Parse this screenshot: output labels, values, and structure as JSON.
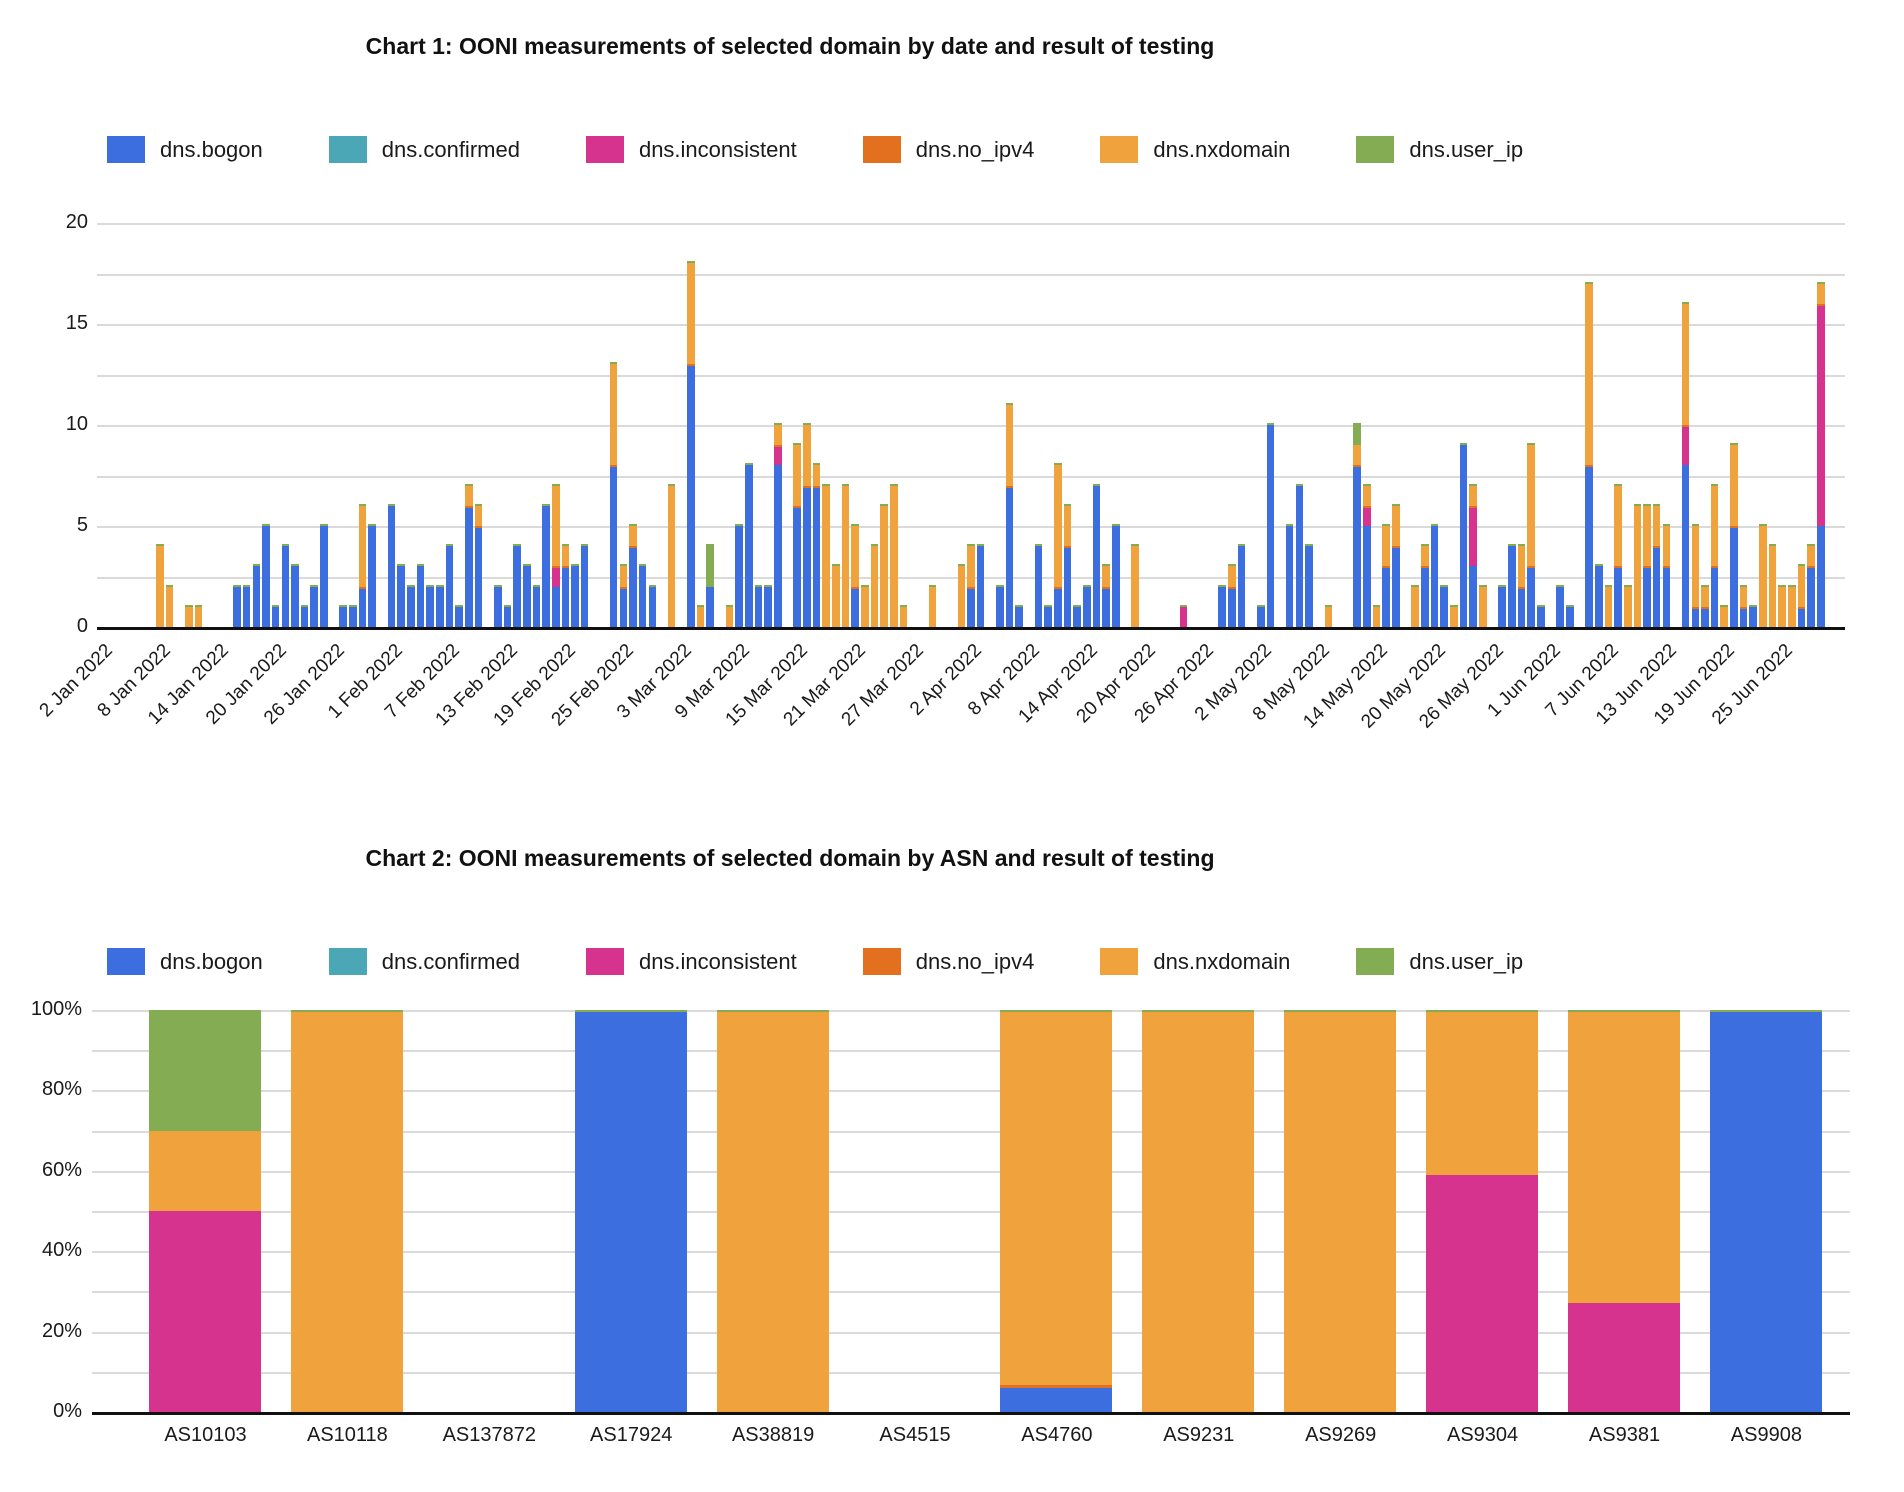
{
  "series": [
    {
      "key": "b",
      "label": "dns.bogon",
      "color": "#3C6EE0"
    },
    {
      "key": "c",
      "label": "dns.confirmed",
      "color": "#4BA6B5"
    },
    {
      "key": "i",
      "label": "dns.inconsistent",
      "color": "#D5338E"
    },
    {
      "key": "nv",
      "label": "dns.no_ipv4",
      "color": "#E2701F"
    },
    {
      "key": "nx",
      "label": "dns.nxdomain",
      "color": "#F0A33C"
    },
    {
      "key": "u",
      "label": "dns.user_ip",
      "color": "#84AD53"
    }
  ],
  "chart_data": [
    {
      "type": "bar",
      "stacked": true,
      "title": "Chart 1: OONI measurements of selected domain by date and result of testing",
      "ylabel": "",
      "xlabel": "",
      "ylim": [
        0,
        20
      ],
      "y_major_ticks": [
        0,
        5,
        10,
        15,
        20
      ],
      "y_minor_step": 2.5,
      "n_day_slots": 181,
      "x_ticks": [
        {
          "d": 0,
          "label": "2 Jan 2022"
        },
        {
          "d": 6,
          "label": "8 Jan 2022"
        },
        {
          "d": 12,
          "label": "14 Jan 2022"
        },
        {
          "d": 18,
          "label": "20 Jan 2022"
        },
        {
          "d": 24,
          "label": "26 Jan 2022"
        },
        {
          "d": 30,
          "label": "1 Feb 2022"
        },
        {
          "d": 36,
          "label": "7 Feb 2022"
        },
        {
          "d": 42,
          "label": "13 Feb 2022"
        },
        {
          "d": 48,
          "label": "19 Feb 2022"
        },
        {
          "d": 54,
          "label": "25 Feb 2022"
        },
        {
          "d": 60,
          "label": "3 Mar 2022"
        },
        {
          "d": 66,
          "label": "9 Mar 2022"
        },
        {
          "d": 72,
          "label": "15 Mar 2022"
        },
        {
          "d": 78,
          "label": "21 Mar 2022"
        },
        {
          "d": 84,
          "label": "27 Mar 2022"
        },
        {
          "d": 90,
          "label": "2 Apr 2022"
        },
        {
          "d": 96,
          "label": "8 Apr 2022"
        },
        {
          "d": 102,
          "label": "14 Apr 2022"
        },
        {
          "d": 108,
          "label": "20 Apr 2022"
        },
        {
          "d": 114,
          "label": "26 Apr 2022"
        },
        {
          "d": 120,
          "label": "2 May 2022"
        },
        {
          "d": 126,
          "label": "8 May 2022"
        },
        {
          "d": 132,
          "label": "14 May 2022"
        },
        {
          "d": 138,
          "label": "20 May 2022"
        },
        {
          "d": 144,
          "label": "26 May 2022"
        },
        {
          "d": 150,
          "label": "1 Jun 2022"
        },
        {
          "d": 156,
          "label": "7 Jun 2022"
        },
        {
          "d": 162,
          "label": "13 Jun 2022"
        },
        {
          "d": 168,
          "label": "19 Jun 2022"
        },
        {
          "d": 174,
          "label": "25 Jun 2022"
        }
      ],
      "bars": [
        {
          "d": 6,
          "date": "8 Jan 2022",
          "nx": 4
        },
        {
          "d": 7,
          "date": "9 Jan 2022",
          "nx": 2
        },
        {
          "d": 9,
          "date": "11 Jan 2022",
          "nx": 1
        },
        {
          "d": 10,
          "date": "12 Jan 2022",
          "nx": 1
        },
        {
          "d": 14,
          "date": "16 Jan 2022",
          "b": 2
        },
        {
          "d": 15,
          "date": "17 Jan 2022",
          "b": 2
        },
        {
          "d": 16,
          "date": "18 Jan 2022",
          "b": 3
        },
        {
          "d": 17,
          "date": "19 Jan 2022",
          "b": 5
        },
        {
          "d": 18,
          "date": "20 Jan 2022",
          "b": 1
        },
        {
          "d": 19,
          "date": "21 Jan 2022",
          "b": 4
        },
        {
          "d": 20,
          "date": "22 Jan 2022",
          "b": 3
        },
        {
          "d": 21,
          "date": "23 Jan 2022",
          "b": 1
        },
        {
          "d": 22,
          "date": "24 Jan 2022",
          "b": 2
        },
        {
          "d": 23,
          "date": "25 Jan 2022",
          "b": 5
        },
        {
          "d": 25,
          "date": "27 Jan 2022",
          "b": 1
        },
        {
          "d": 26,
          "date": "28 Jan 2022",
          "b": 1
        },
        {
          "d": 27,
          "date": "29 Jan 2022",
          "b": 2,
          "nx": 4
        },
        {
          "d": 28,
          "date": "30 Jan 2022",
          "b": 5
        },
        {
          "d": 30,
          "date": "1 Feb 2022",
          "b": 6
        },
        {
          "d": 31,
          "date": "2 Feb 2022",
          "b": 3
        },
        {
          "d": 32,
          "date": "3 Feb 2022",
          "b": 2
        },
        {
          "d": 33,
          "date": "4 Feb 2022",
          "b": 3
        },
        {
          "d": 34,
          "date": "5 Feb 2022",
          "b": 2
        },
        {
          "d": 35,
          "date": "6 Feb 2022",
          "b": 2
        },
        {
          "d": 36,
          "date": "7 Feb 2022",
          "b": 4
        },
        {
          "d": 37,
          "date": "8 Feb 2022",
          "b": 1
        },
        {
          "d": 38,
          "date": "9 Feb 2022",
          "b": 6,
          "nx": 1
        },
        {
          "d": 39,
          "date": "10 Feb 2022",
          "b": 5,
          "nx": 1
        },
        {
          "d": 41,
          "date": "12 Feb 2022",
          "b": 2
        },
        {
          "d": 42,
          "date": "13 Feb 2022",
          "b": 1
        },
        {
          "d": 43,
          "date": "14 Feb 2022",
          "b": 4
        },
        {
          "d": 44,
          "date": "15 Feb 2022",
          "b": 3
        },
        {
          "d": 45,
          "date": "16 Feb 2022",
          "b": 2
        },
        {
          "d": 46,
          "date": "17 Feb 2022",
          "b": 6
        },
        {
          "d": 47,
          "date": "18 Feb 2022",
          "b": 2,
          "i": 1,
          "nx": 4
        },
        {
          "d": 48,
          "date": "19 Feb 2022",
          "b": 3,
          "nx": 1
        },
        {
          "d": 49,
          "date": "20 Feb 2022",
          "b": 3
        },
        {
          "d": 50,
          "date": "21 Feb 2022",
          "b": 4
        },
        {
          "d": 53,
          "date": "24 Feb 2022",
          "b": 8,
          "nx": 5
        },
        {
          "d": 54,
          "date": "25 Feb 2022",
          "b": 2,
          "nx": 1
        },
        {
          "d": 55,
          "date": "26 Feb 2022",
          "b": 4,
          "nx": 1
        },
        {
          "d": 56,
          "date": "27 Feb 2022",
          "b": 3
        },
        {
          "d": 57,
          "date": "28 Feb 2022",
          "b": 2
        },
        {
          "d": 59,
          "date": "2 Mar 2022",
          "nx": 7
        },
        {
          "d": 61,
          "date": "4 Mar 2022",
          "b": 13,
          "nx": 5
        },
        {
          "d": 62,
          "date": "5 Mar 2022",
          "nx": 1
        },
        {
          "d": 63,
          "date": "6 Mar 2022",
          "b": 2,
          "u": 2
        },
        {
          "d": 65,
          "date": "8 Mar 2022",
          "nx": 1
        },
        {
          "d": 66,
          "date": "9 Mar 2022",
          "b": 5
        },
        {
          "d": 67,
          "date": "10 Mar 2022",
          "b": 8
        },
        {
          "d": 68,
          "date": "11 Mar 2022",
          "b": 2
        },
        {
          "d": 69,
          "date": "12 Mar 2022",
          "b": 2
        },
        {
          "d": 70,
          "date": "13 Mar 2022",
          "b": 8,
          "i": 1,
          "nx": 1
        },
        {
          "d": 72,
          "date": "15 Mar 2022",
          "b": 6,
          "nx": 3
        },
        {
          "d": 73,
          "date": "16 Mar 2022",
          "b": 7,
          "nx": 3
        },
        {
          "d": 74,
          "date": "17 Mar 2022",
          "b": 7,
          "nx": 1
        },
        {
          "d": 75,
          "date": "18 Mar 2022",
          "nx": 7
        },
        {
          "d": 76,
          "date": "19 Mar 2022",
          "nx": 3
        },
        {
          "d": 77,
          "date": "20 Mar 2022",
          "nx": 7
        },
        {
          "d": 78,
          "date": "21 Mar 2022",
          "b": 2,
          "nx": 3
        },
        {
          "d": 79,
          "date": "22 Mar 2022",
          "nx": 2
        },
        {
          "d": 80,
          "date": "23 Mar 2022",
          "nx": 4
        },
        {
          "d": 81,
          "date": "24 Mar 2022",
          "nx": 6
        },
        {
          "d": 82,
          "date": "25 Mar 2022",
          "nx": 7
        },
        {
          "d": 83,
          "date": "26 Mar 2022",
          "nx": 1
        },
        {
          "d": 86,
          "date": "29 Mar 2022",
          "nx": 2
        },
        {
          "d": 89,
          "date": "1 Apr 2022",
          "nx": 3
        },
        {
          "d": 90,
          "date": "2 Apr 2022",
          "b": 2,
          "nx": 2
        },
        {
          "d": 91,
          "date": "3 Apr 2022",
          "b": 4
        },
        {
          "d": 93,
          "date": "5 Apr 2022",
          "b": 2
        },
        {
          "d": 94,
          "date": "6 Apr 2022",
          "b": 7,
          "nx": 4
        },
        {
          "d": 95,
          "date": "7 Apr 2022",
          "b": 1
        },
        {
          "d": 97,
          "date": "9 Apr 2022",
          "b": 4
        },
        {
          "d": 98,
          "date": "10 Apr 2022",
          "b": 1
        },
        {
          "d": 99,
          "date": "11 Apr 2022",
          "b": 2,
          "nx": 6
        },
        {
          "d": 100,
          "date": "12 Apr 2022",
          "b": 4,
          "nx": 2
        },
        {
          "d": 101,
          "date": "13 Apr 2022",
          "b": 1
        },
        {
          "d": 102,
          "date": "14 Apr 2022",
          "b": 2
        },
        {
          "d": 103,
          "date": "15 Apr 2022",
          "b": 7
        },
        {
          "d": 104,
          "date": "16 Apr 2022",
          "b": 2,
          "nx": 1
        },
        {
          "d": 105,
          "date": "17 Apr 2022",
          "b": 5
        },
        {
          "d": 107,
          "date": "19 Apr 2022",
          "nx": 4
        },
        {
          "d": 112,
          "date": "24 Apr 2022",
          "i": 1
        },
        {
          "d": 116,
          "date": "28 Apr 2022",
          "b": 2
        },
        {
          "d": 117,
          "date": "29 Apr 2022",
          "b": 2,
          "nx": 1
        },
        {
          "d": 118,
          "date": "30 Apr 2022",
          "b": 4
        },
        {
          "d": 120,
          "date": "2 May 2022",
          "b": 1
        },
        {
          "d": 121,
          "date": "3 May 2022",
          "b": 10
        },
        {
          "d": 123,
          "date": "5 May 2022",
          "b": 5
        },
        {
          "d": 124,
          "date": "6 May 2022",
          "b": 7
        },
        {
          "d": 125,
          "date": "7 May 2022",
          "b": 4
        },
        {
          "d": 127,
          "date": "9 May 2022",
          "nx": 1
        },
        {
          "d": 130,
          "date": "12 May 2022",
          "b": 8,
          "nx": 1,
          "u": 1
        },
        {
          "d": 131,
          "date": "13 May 2022",
          "b": 5,
          "i": 1,
          "nx": 1
        },
        {
          "d": 132,
          "date": "14 May 2022",
          "nx": 1
        },
        {
          "d": 133,
          "date": "15 May 2022",
          "b": 3,
          "nx": 2
        },
        {
          "d": 134,
          "date": "16 May 2022",
          "b": 4,
          "nx": 2
        },
        {
          "d": 136,
          "date": "18 May 2022",
          "nx": 2
        },
        {
          "d": 137,
          "date": "19 May 2022",
          "b": 3,
          "nx": 1
        },
        {
          "d": 138,
          "date": "20 May 2022",
          "b": 5
        },
        {
          "d": 139,
          "date": "21 May 2022",
          "b": 2
        },
        {
          "d": 140,
          "date": "22 May 2022",
          "nx": 1
        },
        {
          "d": 141,
          "date": "23 May 2022",
          "b": 9
        },
        {
          "d": 142,
          "date": "24 May 2022",
          "b": 3,
          "i": 3,
          "nx": 1
        },
        {
          "d": 143,
          "date": "25 May 2022",
          "nx": 2
        },
        {
          "d": 145,
          "date": "27 May 2022",
          "b": 2
        },
        {
          "d": 146,
          "date": "28 May 2022",
          "b": 4
        },
        {
          "d": 147,
          "date": "29 May 2022",
          "b": 2,
          "nx": 2
        },
        {
          "d": 148,
          "date": "30 May 2022",
          "b": 3,
          "nx": 6
        },
        {
          "d": 149,
          "date": "31 May 2022",
          "b": 1
        },
        {
          "d": 151,
          "date": "2 Jun 2022",
          "b": 2
        },
        {
          "d": 152,
          "date": "3 Jun 2022",
          "b": 1
        },
        {
          "d": 154,
          "date": "5 Jun 2022",
          "b": 8,
          "nx": 9
        },
        {
          "d": 155,
          "date": "6 Jun 2022",
          "b": 3
        },
        {
          "d": 156,
          "date": "7 Jun 2022",
          "nx": 2
        },
        {
          "d": 157,
          "date": "8 Jun 2022",
          "b": 3,
          "nx": 4
        },
        {
          "d": 158,
          "date": "9 Jun 2022",
          "nx": 2
        },
        {
          "d": 159,
          "date": "10 Jun 2022",
          "nx": 6
        },
        {
          "d": 160,
          "date": "11 Jun 2022",
          "b": 3,
          "nx": 3
        },
        {
          "d": 161,
          "date": "12 Jun 2022",
          "b": 4,
          "nx": 2
        },
        {
          "d": 162,
          "date": "13 Jun 2022",
          "b": 3,
          "nx": 2
        },
        {
          "d": 164,
          "date": "15 Jun 2022",
          "b": 8,
          "i": 2,
          "nx": 6
        },
        {
          "d": 165,
          "date": "16 Jun 2022",
          "b": 1,
          "nx": 4
        },
        {
          "d": 166,
          "date": "17 Jun 2022",
          "b": 1,
          "nx": 1
        },
        {
          "d": 167,
          "date": "18 Jun 2022",
          "b": 3,
          "nx": 4
        },
        {
          "d": 168,
          "date": "19 Jun 2022",
          "nx": 1
        },
        {
          "d": 169,
          "date": "20 Jun 2022",
          "b": 5,
          "nx": 4
        },
        {
          "d": 170,
          "date": "21 Jun 2022",
          "b": 1,
          "nx": 1
        },
        {
          "d": 171,
          "date": "22 Jun 2022",
          "b": 1
        },
        {
          "d": 172,
          "date": "23 Jun 2022",
          "nx": 5
        },
        {
          "d": 173,
          "date": "24 Jun 2022",
          "nx": 4
        },
        {
          "d": 174,
          "date": "25 Jun 2022",
          "nx": 2
        },
        {
          "d": 175,
          "date": "26 Jun 2022",
          "nx": 2
        },
        {
          "d": 176,
          "date": "27 Jun 2022",
          "b": 1,
          "nx": 2
        },
        {
          "d": 177,
          "date": "28 Jun 2022",
          "b": 3,
          "nx": 1
        },
        {
          "d": 178,
          "date": "29 Jun 2022",
          "b": 5,
          "i": 11,
          "nx": 1
        }
      ]
    },
    {
      "type": "bar",
      "stacked_percent": true,
      "title": "Chart 2: OONI measurements of selected domain by ASN and result of testing",
      "ylim": [
        0,
        100
      ],
      "y_major_tick_labels": [
        "0%",
        "20%",
        "40%",
        "60%",
        "80%",
        "100%"
      ],
      "y_minor_step_pct": 10,
      "categories": [
        "AS10103",
        "AS10118",
        "AS137872",
        "AS17924",
        "AS38819",
        "AS4515",
        "AS4760",
        "AS9231",
        "AS9269",
        "AS9304",
        "AS9381",
        "AS9908"
      ],
      "columns": [
        {
          "asn": "AS10103",
          "i": 50,
          "nx": 20,
          "u": 29.5
        },
        {
          "asn": "AS10118",
          "nx": 99.5
        },
        {
          "asn": "AS137872"
        },
        {
          "asn": "AS17924",
          "b": 99.5
        },
        {
          "asn": "AS38819",
          "nx": 99.5
        },
        {
          "asn": "AS4515"
        },
        {
          "asn": "AS4760",
          "b": 6,
          "nv": 0.7,
          "nx": 92.8
        },
        {
          "asn": "AS9231",
          "nx": 99.5
        },
        {
          "asn": "AS9269",
          "nx": 99.5
        },
        {
          "asn": "AS9304",
          "i": 59,
          "nx": 40.5
        },
        {
          "asn": "AS9381",
          "i": 27,
          "nx": 72.5
        },
        {
          "asn": "AS9908",
          "b": 99.5
        }
      ]
    }
  ]
}
